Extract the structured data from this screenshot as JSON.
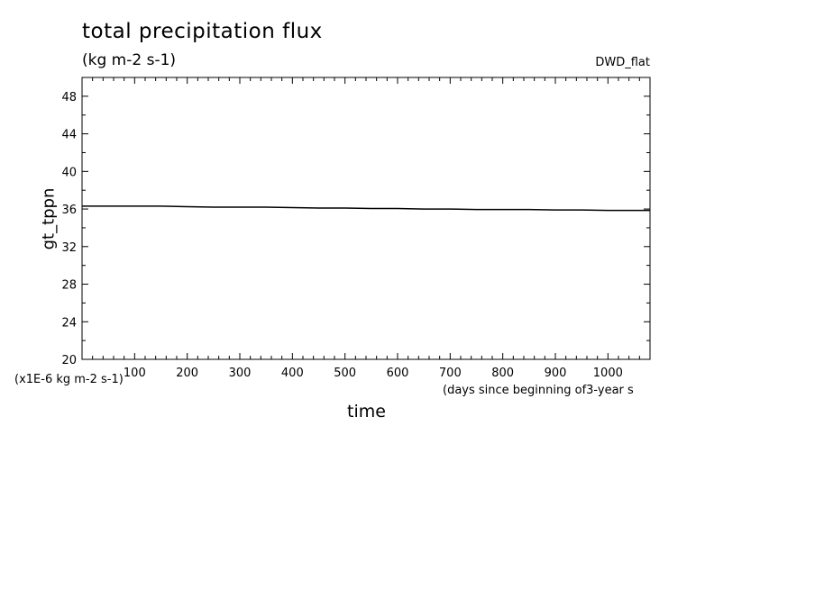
{
  "chart_data": {
    "type": "line",
    "title": "total precipitation flux",
    "units": "(kg m-2 s-1)",
    "run_label": "DWD_flat",
    "xlabel": "time",
    "x_note": "(days since beginning of3-year s",
    "ylabel": "gt_tppn",
    "y_scale_note": "(x1E-6 kg m-2 s-1)",
    "xlim": [
      0,
      1080
    ],
    "ylim": [
      20,
      50
    ],
    "x_ticks": [
      100,
      200,
      300,
      400,
      500,
      600,
      700,
      800,
      900,
      1000
    ],
    "y_ticks": [
      20,
      24,
      28,
      32,
      36,
      40,
      44,
      48
    ],
    "grid": false,
    "legend": "none",
    "series": [
      {
        "x": [
          0,
          50,
          100,
          150,
          200,
          250,
          300,
          350,
          400,
          450,
          500,
          550,
          600,
          650,
          700,
          750,
          800,
          850,
          900,
          950,
          1000,
          1050,
          1080
        ],
        "y": [
          36.3,
          36.3,
          36.3,
          36.3,
          36.25,
          36.2,
          36.2,
          36.2,
          36.15,
          36.1,
          36.1,
          36.05,
          36.05,
          36.0,
          36.0,
          35.95,
          35.95,
          35.95,
          35.9,
          35.9,
          35.85,
          35.85,
          35.85
        ]
      }
    ],
    "line_color": "#000000"
  }
}
